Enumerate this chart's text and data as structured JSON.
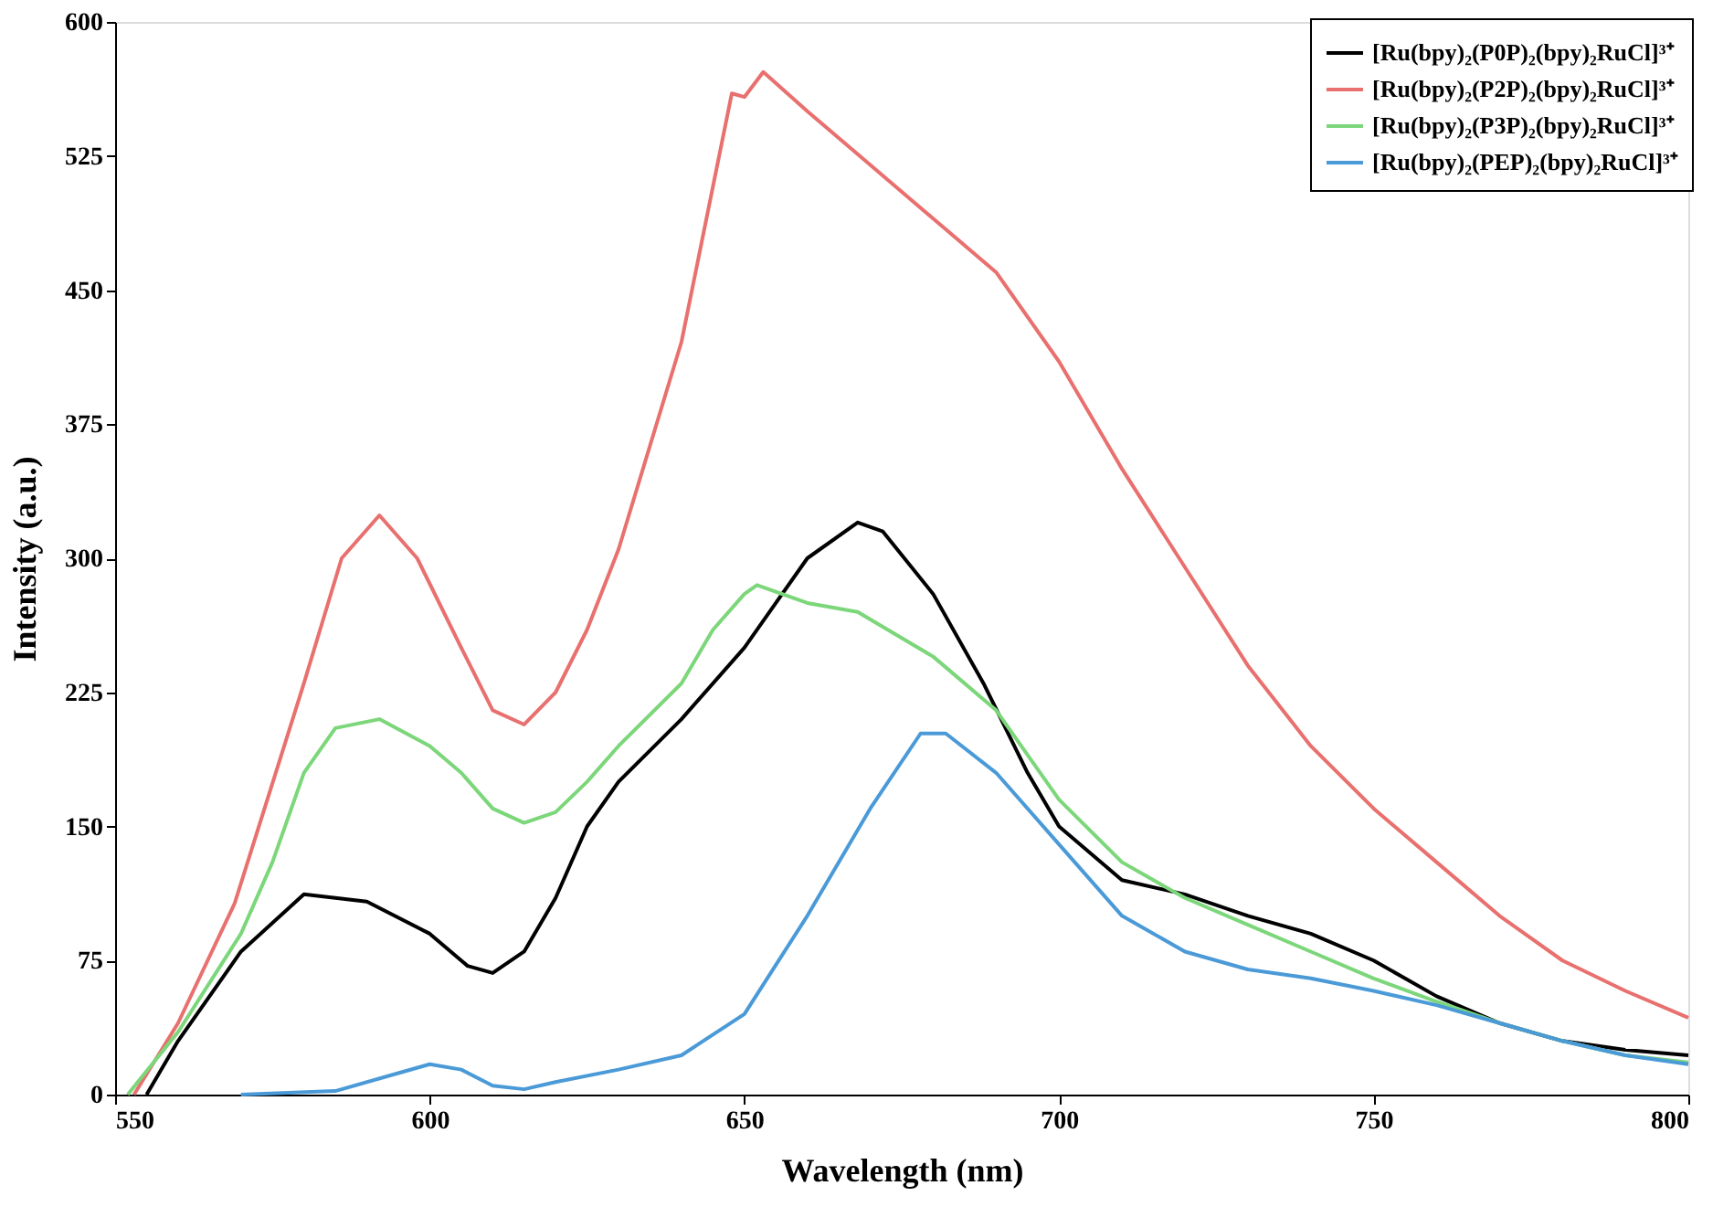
{
  "chart_data": {
    "type": "line",
    "xlabel": "Wavelength (nm)",
    "ylabel": "Intensity (a.u.)",
    "xlim": [
      550,
      800
    ],
    "xticks": [
      550,
      600,
      650,
      700,
      750,
      800
    ],
    "ylim": [
      0,
      600
    ],
    "yticks": [
      0,
      75,
      150,
      225,
      300,
      375,
      450,
      525,
      600
    ],
    "grid": false,
    "legend": "top right",
    "line_style": "solid",
    "marker": "none",
    "series": [
      {
        "name": "[Ru(bpy)₂(P0P)₂(bpy)₂RuCl]³⁺",
        "color": "#000000",
        "x": [
          555,
          560,
          570,
          580,
          590,
          600,
          606,
          610,
          615,
          620,
          625,
          630,
          640,
          650,
          655,
          660,
          668,
          672,
          680,
          688,
          695,
          700,
          710,
          720,
          730,
          740,
          750,
          760,
          770,
          780,
          790,
          800
        ],
        "values": [
          0,
          30,
          80,
          112,
          108,
          90,
          72,
          68,
          80,
          110,
          150,
          175,
          210,
          250,
          275,
          300,
          320,
          315,
          280,
          230,
          180,
          150,
          120,
          112,
          100,
          90,
          75,
          55,
          40,
          30,
          25,
          22
        ]
      },
      {
        "name": "[Ru(bpy)₂(P2P)₂(bpy)₂RuCl]³⁺",
        "color": "#e8706e",
        "x": [
          553,
          560,
          569,
          580,
          586,
          592,
          598,
          605,
          610,
          615,
          620,
          625,
          630,
          640,
          648,
          650,
          653,
          660,
          670,
          680,
          690,
          700,
          710,
          720,
          730,
          740,
          750,
          760,
          770,
          780,
          790,
          800
        ],
        "values": [
          0,
          40,
          107,
          230,
          300,
          324,
          300,
          250,
          215,
          207,
          225,
          260,
          305,
          421,
          560,
          558,
          572,
          550,
          520,
          490,
          460,
          410,
          350,
          295,
          240,
          195,
          160,
          130,
          100,
          75,
          58,
          43
        ]
      },
      {
        "name": "[Ru(bpy)₂(P3P)₂(bpy)₂RuCl]³⁺",
        "color": "#7cd67a",
        "x": [
          552,
          560,
          570,
          575,
          580,
          585,
          592,
          600,
          605,
          610,
          615,
          620,
          625,
          630,
          640,
          645,
          650,
          652,
          660,
          668,
          680,
          690,
          700,
          710,
          720,
          730,
          740,
          750,
          760,
          770,
          780,
          790,
          800
        ],
        "values": [
          0,
          35,
          90,
          130,
          180,
          205,
          210,
          195,
          180,
          160,
          152,
          158,
          175,
          195,
          230,
          260,
          280,
          285,
          275,
          270,
          245,
          215,
          165,
          130,
          110,
          95,
          80,
          65,
          52,
          40,
          30,
          22,
          18
        ]
      },
      {
        "name": "[Ru(bpy)₂(PEP)₂(bpy)₂RuCl]³⁺",
        "color": "#4b9ad8",
        "x": [
          570,
          585,
          595,
          600,
          605,
          610,
          615,
          620,
          630,
          640,
          650,
          660,
          670,
          678,
          682,
          690,
          700,
          710,
          720,
          730,
          740,
          750,
          760,
          770,
          780,
          790,
          800
        ],
        "values": [
          0,
          2,
          12,
          17,
          14,
          5,
          3,
          7,
          14,
          22,
          45,
          100,
          160,
          202,
          202,
          180,
          140,
          100,
          80,
          70,
          65,
          58,
          50,
          40,
          30,
          22,
          17
        ]
      }
    ]
  }
}
